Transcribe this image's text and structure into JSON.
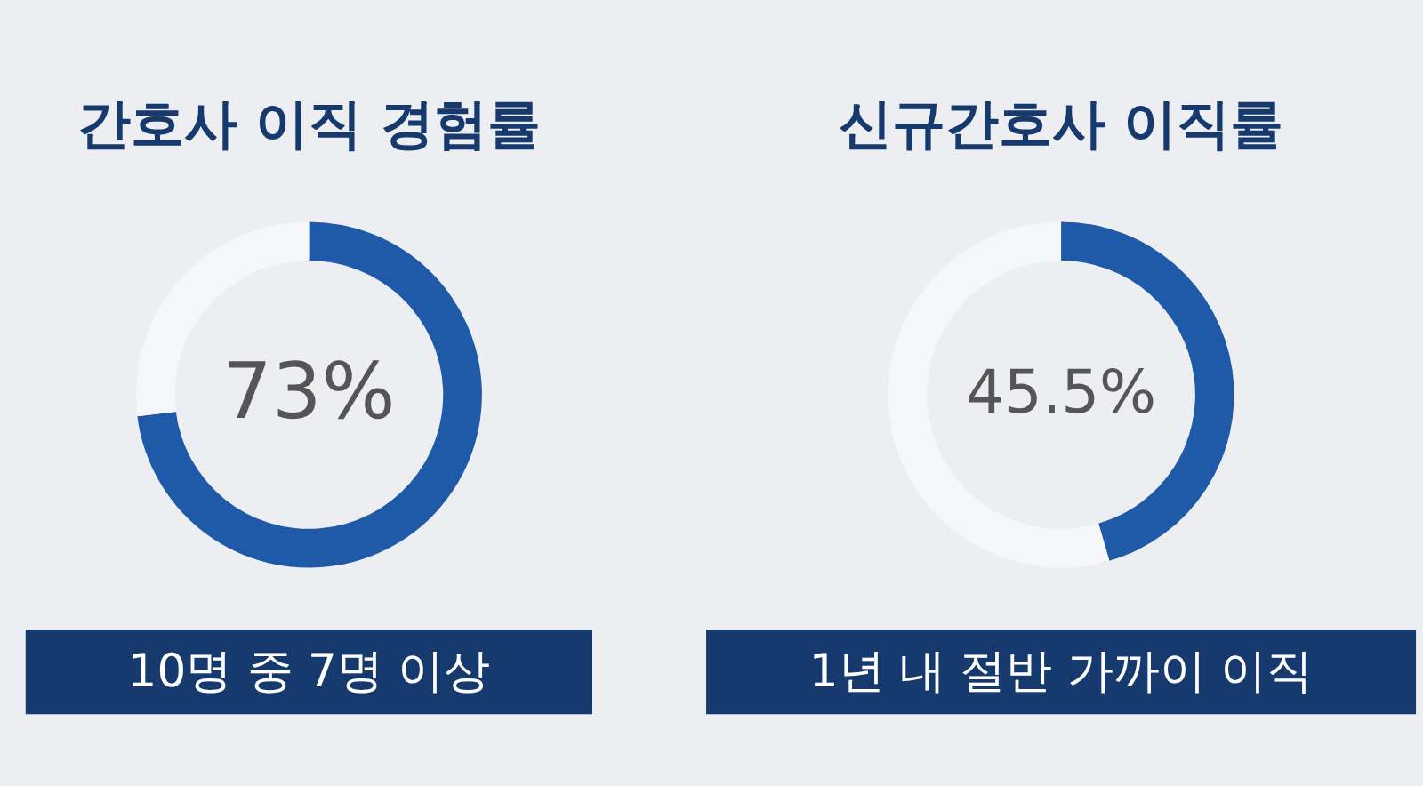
{
  "chart_data": [
    {
      "type": "donut",
      "title": "간호사 이직 경험률",
      "categories": [
        null,
        null
      ],
      "values": [
        73,
        27
      ],
      "colors": [
        "#1f5aa8",
        "#f5f7fb"
      ],
      "value_labels": [
        "73%",
        null
      ],
      "annotations": [
        "10명 중 7명 이상"
      ]
    },
    {
      "type": "donut",
      "title": "신규간호사 이직률",
      "categories": [
        null,
        null
      ],
      "values": [
        45.5,
        54.5
      ],
      "colors": [
        "#1f5aa8",
        "#f5f7fb"
      ],
      "value_labels": [
        "45.5%",
        null
      ],
      "annotations": [
        "1년 내 절반 가까이 이직"
      ]
    }
  ]
}
